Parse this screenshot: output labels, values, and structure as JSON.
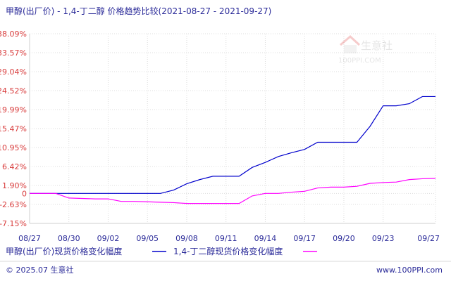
{
  "title": "甲醇(出厂价) - 1,4-丁二醇 价格趋势比较(2021-08-27 - 2021-09-27)",
  "chart_data": {
    "type": "line",
    "title": "甲醇(出厂价) - 1,4-丁二醇 价格趋势比较(2021-08-27 - 2021-09-27)",
    "xlabel": "",
    "ylabel": "",
    "ylim": [
      -7.15,
      38.09
    ],
    "yticks": [
      "38.09%",
      "33.57%",
      "29.04%",
      "24.52%",
      "19.99%",
      "15.47%",
      "10.95%",
      "6.42%",
      "1.90%",
      "0",
      "-2.63%",
      "-7.15%"
    ],
    "xticks": [
      "08/27",
      "08/30",
      "09/02",
      "09/05",
      "09/08",
      "09/11",
      "09/14",
      "09/17",
      "09/20",
      "09/23",
      "09/27"
    ],
    "xtick_days": [
      0,
      3,
      6,
      9,
      12,
      15,
      18,
      21,
      24,
      27,
      31
    ],
    "grid": true,
    "legend": "bottom",
    "series": [
      {
        "name": "甲醇(出厂价)现货价格变化幅度",
        "color": "#0000cc",
        "points": [
          [
            0,
            0.0
          ],
          [
            1,
            0.0
          ],
          [
            2,
            0.0
          ],
          [
            3,
            0.0
          ],
          [
            4,
            0.0
          ],
          [
            5,
            0.0
          ],
          [
            6,
            0.0
          ],
          [
            7,
            0.0
          ],
          [
            8,
            0.0
          ],
          [
            9,
            0.0
          ],
          [
            10,
            0.0
          ],
          [
            11,
            0.8
          ],
          [
            12,
            2.3
          ],
          [
            13,
            3.3
          ],
          [
            14,
            4.1
          ],
          [
            15,
            4.1
          ],
          [
            16,
            4.1
          ],
          [
            17,
            6.2
          ],
          [
            18,
            7.4
          ],
          [
            19,
            8.8
          ],
          [
            20,
            9.7
          ],
          [
            21,
            10.5
          ],
          [
            22,
            12.2
          ],
          [
            23,
            12.2
          ],
          [
            24,
            12.2
          ],
          [
            25,
            12.2
          ],
          [
            26,
            16.0
          ],
          [
            27,
            20.9
          ],
          [
            28,
            20.9
          ],
          [
            29,
            21.4
          ],
          [
            30,
            23.1
          ],
          [
            31,
            23.1
          ]
        ]
      },
      {
        "name": "1,4-丁二醇现货价格变化幅度",
        "color": "#ff00ff",
        "points": [
          [
            0,
            0.0
          ],
          [
            1,
            0.0
          ],
          [
            2,
            0.0
          ],
          [
            3,
            -1.1
          ],
          [
            4,
            -1.2
          ],
          [
            5,
            -1.3
          ],
          [
            6,
            -1.3
          ],
          [
            7,
            -1.9
          ],
          [
            8,
            -1.9
          ],
          [
            9,
            -2.0
          ],
          [
            10,
            -2.1
          ],
          [
            11,
            -2.2
          ],
          [
            12,
            -2.4
          ],
          [
            13,
            -2.4
          ],
          [
            14,
            -2.4
          ],
          [
            15,
            -2.4
          ],
          [
            16,
            -2.4
          ],
          [
            17,
            -0.6
          ],
          [
            18,
            0.0
          ],
          [
            19,
            0.0
          ],
          [
            20,
            0.3
          ],
          [
            21,
            0.5
          ],
          [
            22,
            1.3
          ],
          [
            23,
            1.5
          ],
          [
            24,
            1.5
          ],
          [
            25,
            1.7
          ],
          [
            26,
            2.4
          ],
          [
            27,
            2.6
          ],
          [
            28,
            2.7
          ],
          [
            29,
            3.3
          ],
          [
            30,
            3.5
          ],
          [
            31,
            3.6
          ]
        ]
      }
    ]
  },
  "footer": {
    "copyright": "© 2025.07 生意社",
    "site": "www.100PPI.com"
  },
  "watermark": {
    "top": "生意社",
    "bottom": "100PPI.COM"
  }
}
